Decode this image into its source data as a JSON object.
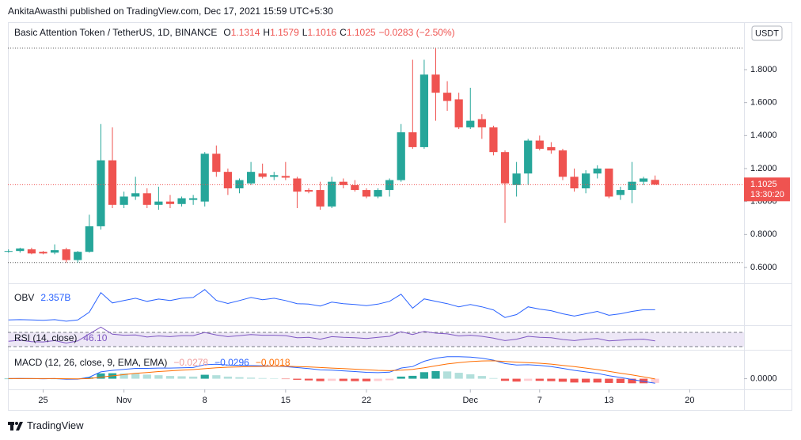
{
  "header": {
    "byline": "AnkitaAwasthi published on TradingView.com, Dec 17, 2021 15:59 UTC+5:30",
    "brand": "TradingView"
  },
  "chart_data": {
    "type": "candlestick",
    "title": "Basic Attention Token / TetherUS, 1D, BINANCE",
    "ohlc_prefixes": [
      "O",
      "H",
      "L",
      "C"
    ],
    "change_label": "−0.0283 (−2.50%)",
    "currency": "USDT",
    "countdown": "13:30:20",
    "up_color": "#26a69a",
    "down_color": "#ef5350",
    "x": [
      0,
      1,
      2,
      3,
      4,
      5,
      6,
      7,
      8,
      9,
      10,
      11,
      12,
      13,
      14,
      15,
      16,
      17,
      18,
      19,
      20,
      21,
      22,
      23,
      24,
      25,
      26,
      27,
      28,
      29,
      30,
      31,
      32,
      33,
      34,
      35,
      36,
      37,
      38,
      39,
      40,
      41,
      42,
      43,
      44,
      45,
      46,
      47,
      48,
      49,
      50,
      51,
      52,
      53,
      54,
      55,
      56
    ],
    "xlim": [
      -0.05,
      63.7
    ],
    "xticks": [
      {
        "value": 3,
        "label": "25"
      },
      {
        "value": 10,
        "label": "Nov"
      },
      {
        "value": 17,
        "label": "8"
      },
      {
        "value": 24,
        "label": "15"
      },
      {
        "value": 31,
        "label": "22"
      },
      {
        "value": 40,
        "label": "Dec"
      },
      {
        "value": 46,
        "label": "7"
      },
      {
        "value": 52,
        "label": "13"
      },
      {
        "value": 59,
        "label": "20"
      }
    ],
    "open": [
      0.695,
      0.7,
      0.71,
      0.695,
      0.69,
      0.71,
      0.645,
      0.695,
      0.85,
      1.25,
      0.98,
      1.03,
      1.05,
      0.98,
      1.0,
      0.985,
      1.01,
      1.0,
      1.29,
      1.18,
      1.08,
      1.11,
      1.17,
      1.15,
      1.155,
      1.14,
      1.07,
      1.07,
      0.97,
      1.12,
      1.1,
      1.07,
      1.03,
      1.07,
      1.13,
      1.42,
      1.33,
      1.77,
      1.66,
      1.62,
      1.45,
      1.5,
      1.45,
      1.3,
      1.1,
      1.17,
      1.37,
      1.33,
      1.31,
      1.15,
      1.08,
      1.17,
      1.2,
      1.04,
      1.07,
      1.12,
      1.1314
    ],
    "high": [
      0.71,
      0.72,
      0.72,
      0.7,
      0.74,
      0.72,
      0.7,
      0.92,
      1.47,
      1.45,
      1.06,
      1.15,
      1.08,
      1.09,
      1.04,
      1.03,
      1.04,
      1.3,
      1.34,
      1.2,
      1.14,
      1.24,
      1.23,
      1.18,
      1.24,
      1.15,
      1.08,
      1.12,
      1.15,
      1.14,
      1.13,
      1.08,
      1.08,
      1.14,
      1.47,
      1.86,
      1.86,
      1.93,
      1.73,
      1.66,
      1.69,
      1.53,
      1.46,
      1.31,
      1.24,
      1.38,
      1.4,
      1.36,
      1.32,
      1.2,
      1.19,
      1.22,
      1.2,
      1.09,
      1.24,
      1.15,
      1.1579
    ],
    "low": [
      0.69,
      0.69,
      0.68,
      0.68,
      0.68,
      0.63,
      0.63,
      0.69,
      0.83,
      0.96,
      0.96,
      1.01,
      0.96,
      0.95,
      0.96,
      0.97,
      0.98,
      0.97,
      1.15,
      1.04,
      1.05,
      1.1,
      1.14,
      1.13,
      1.13,
      0.96,
      1.05,
      0.95,
      0.96,
      1.08,
      1.06,
      1.02,
      1.02,
      1.03,
      1.12,
      1.32,
      1.32,
      1.49,
      1.55,
      1.44,
      1.44,
      1.38,
      1.28,
      0.87,
      1.03,
      1.1,
      1.31,
      1.29,
      1.13,
      1.06,
      1.05,
      1.14,
      1.02,
      1.01,
      0.99,
      1.1,
      1.1016
    ],
    "close": [
      0.7,
      0.715,
      0.685,
      0.685,
      0.705,
      0.645,
      0.695,
      0.85,
      1.25,
      0.98,
      1.03,
      1.05,
      0.98,
      1.0,
      0.985,
      1.02,
      1.02,
      1.29,
      1.18,
      1.08,
      1.13,
      1.18,
      1.15,
      1.16,
      1.145,
      1.06,
      1.06,
      0.97,
      1.12,
      1.1,
      1.07,
      1.03,
      1.07,
      1.13,
      1.42,
      1.33,
      1.77,
      1.66,
      1.61,
      1.45,
      1.49,
      1.45,
      1.3,
      1.11,
      1.17,
      1.37,
      1.32,
      1.31,
      1.15,
      1.08,
      1.17,
      1.2,
      1.03,
      1.07,
      1.12,
      1.14,
      1.1025
    ],
    "ylim": [
      0.504,
      2.088
    ],
    "yticks": [
      {
        "value": 0.6,
        "label": "0.6000"
      },
      {
        "value": 0.8,
        "label": "0.8000"
      },
      {
        "value": 1.0,
        "label": "1.0000"
      },
      {
        "value": 1.2,
        "label": "1.2000"
      },
      {
        "value": 1.4,
        "label": "1.4000"
      },
      {
        "value": 1.6,
        "label": "1.6000"
      },
      {
        "value": 1.8,
        "label": "1.8000"
      }
    ],
    "grid": false,
    "obv": {
      "type": "line",
      "name": "OBV",
      "value_label": "2.357B",
      "color": "#2962ff",
      "ylim": [
        1.36,
        3.96
      ],
      "values": [
        1.7,
        1.72,
        1.7,
        1.68,
        1.72,
        1.62,
        1.7,
        2.2,
        3.46,
        2.8,
        2.95,
        3.1,
        2.9,
        3.05,
        2.95,
        3.1,
        3.15,
        3.66,
        2.96,
        2.76,
        2.95,
        3.15,
        3.0,
        3.1,
        2.95,
        2.75,
        2.72,
        2.6,
        2.85,
        2.75,
        2.7,
        2.62,
        2.72,
        2.9,
        3.36,
        2.46,
        3.06,
        2.9,
        2.75,
        2.55,
        2.7,
        2.55,
        2.35,
        1.86,
        2.05,
        2.55,
        2.4,
        2.3,
        2.1,
        1.95,
        2.1,
        2.25,
        2.0,
        2.1,
        2.25,
        2.36,
        2.357
      ]
    },
    "rsi": {
      "type": "line",
      "name": "RSI (14, close)",
      "value_label": "46.10",
      "color": "#7e57c2",
      "band_color": "#ede7f6",
      "ylim": [
        21,
        88
      ],
      "bands": [
        70,
        30
      ],
      "values": [
        45,
        48,
        44,
        43,
        47,
        40,
        46,
        66,
        85,
        65,
        62,
        63,
        57,
        60,
        58,
        61,
        61,
        70,
        63,
        58,
        61,
        64,
        62,
        62,
        61,
        55,
        56,
        51,
        58,
        56,
        55,
        53,
        56,
        59,
        72,
        64,
        73,
        68,
        66,
        60,
        62,
        59,
        54,
        47,
        51,
        59,
        56,
        55,
        50,
        47,
        51,
        53,
        46,
        48,
        50,
        51,
        46.1
      ]
    },
    "macd": {
      "name": "MACD (12, 26, close, 9, EMA, EMA)",
      "ylim": [
        -0.07,
        0.18
      ],
      "yticks": [
        {
          "value": 0,
          "label": "0.0000"
        }
      ],
      "histogram": {
        "type": "bar",
        "value_label": "−0.0278",
        "label_color": "#ef9a9a",
        "colors": [
          "#26a69a",
          "#b2dfdb",
          "#ef5350",
          "#ffcdd2"
        ],
        "values": [
          0,
          0.001,
          0,
          -0.001,
          0,
          -0.004,
          -0.002,
          0.009,
          0.035,
          0.036,
          0.035,
          0.033,
          0.027,
          0.023,
          0.018,
          0.016,
          0.014,
          0.026,
          0.023,
          0.014,
          0.01,
          0.007,
          0.004,
          0.001,
          -0.002,
          -0.007,
          -0.011,
          -0.016,
          -0.014,
          -0.015,
          -0.016,
          -0.017,
          -0.015,
          -0.01,
          0.014,
          0.019,
          0.043,
          0.05,
          0.048,
          0.039,
          0.029,
          0.018,
          0.004,
          -0.014,
          -0.019,
          -0.014,
          -0.014,
          -0.016,
          -0.02,
          -0.025,
          -0.025,
          -0.025,
          -0.028,
          -0.028,
          -0.03,
          -0.03,
          -0.0278
        ]
      },
      "macd_line": {
        "type": "line",
        "value_label": "−0.0296",
        "color": "#2962ff",
        "values": [
          0.001,
          0.002,
          0.001,
          0.0,
          0.001,
          -0.004,
          -0.003,
          0.01,
          0.045,
          0.055,
          0.062,
          0.068,
          0.068,
          0.07,
          0.07,
          0.072,
          0.074,
          0.092,
          0.095,
          0.09,
          0.088,
          0.087,
          0.085,
          0.083,
          0.08,
          0.073,
          0.067,
          0.058,
          0.056,
          0.052,
          0.047,
          0.042,
          0.04,
          0.043,
          0.07,
          0.08,
          0.115,
          0.135,
          0.145,
          0.145,
          0.142,
          0.135,
          0.122,
          0.1,
          0.09,
          0.092,
          0.088,
          0.08,
          0.068,
          0.055,
          0.045,
          0.035,
          0.02,
          0.008,
          -0.005,
          -0.018,
          -0.0296
        ]
      },
      "signal_line": {
        "type": "line",
        "value_label": "−0.0018",
        "color": "#ff6d00",
        "values": [
          0.001,
          0.001,
          0.001,
          0.001,
          0.001,
          0.0,
          -0.001,
          0.001,
          0.01,
          0.019,
          0.027,
          0.035,
          0.041,
          0.047,
          0.052,
          0.056,
          0.06,
          0.066,
          0.072,
          0.076,
          0.078,
          0.08,
          0.081,
          0.082,
          0.082,
          0.08,
          0.078,
          0.074,
          0.07,
          0.067,
          0.063,
          0.059,
          0.055,
          0.053,
          0.056,
          0.061,
          0.072,
          0.085,
          0.097,
          0.106,
          0.113,
          0.117,
          0.118,
          0.114,
          0.109,
          0.106,
          0.102,
          0.096,
          0.088,
          0.08,
          0.07,
          0.06,
          0.048,
          0.036,
          0.025,
          0.012,
          -0.0018
        ]
      }
    }
  }
}
